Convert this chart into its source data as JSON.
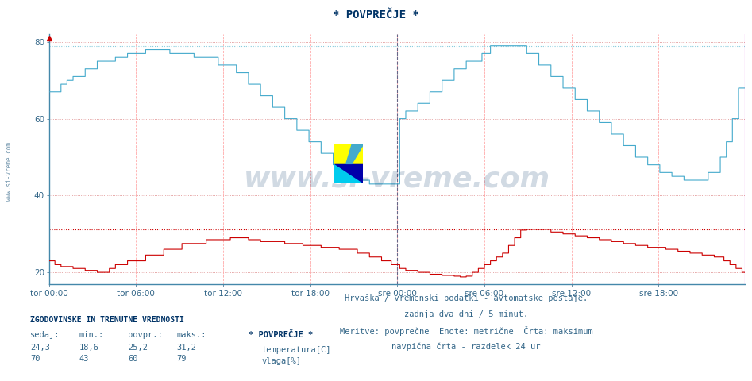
{
  "title": "* POVPREČJE *",
  "fig_bg_color": "#ffffff",
  "plot_bg_color": "#ffffff",
  "grid_color_h": "#ddbbbb",
  "grid_color_v": "#ffcccc",
  "temp_color": "#cc0000",
  "humidity_color": "#44aacc",
  "max_line_color_temp": "#dd4444",
  "max_line_color_humid": "#88ccdd",
  "midnight_line_color": "#888888",
  "right_border_color": "#cc00cc",
  "ymin": 17,
  "ymax": 82,
  "yticks": [
    20,
    40,
    60,
    80
  ],
  "temp_max": 31.2,
  "humid_max": 79,
  "subtitle1": "Hrvaška / vremenski podatki - avtomatske postaje.",
  "subtitle2": "zadnja dva dni / 5 minut.",
  "subtitle3": "Meritve: povprečne  Enote: metrične  Črta: maksimum",
  "subtitle4": "navpična črta - razdelek 24 ur",
  "legend_title": "* POVPREČJE *",
  "legend_items": [
    {
      "label": "temperatura[C]",
      "color": "#cc0000"
    },
    {
      "label": "vlaga[%]",
      "color": "#44aacc"
    }
  ],
  "stats_header": [
    "sedaj:",
    "min.:",
    "povpr.:",
    "maks.:"
  ],
  "stats_temp": [
    "24,3",
    "18,6",
    "25,2",
    "31,2"
  ],
  "stats_humid": [
    "70",
    "43",
    "60",
    "79"
  ],
  "watermark": "www.si-vreme.com",
  "sidebar_text": "www.si-vreme.com",
  "n_points": 576,
  "midnight_positions": [
    288
  ],
  "xlabel_times": [
    "tor 00:00",
    "tor 06:00",
    "tor 12:00",
    "tor 18:00",
    "sre 00:00",
    "sre 06:00",
    "sre 12:00",
    "sre 18:00"
  ]
}
